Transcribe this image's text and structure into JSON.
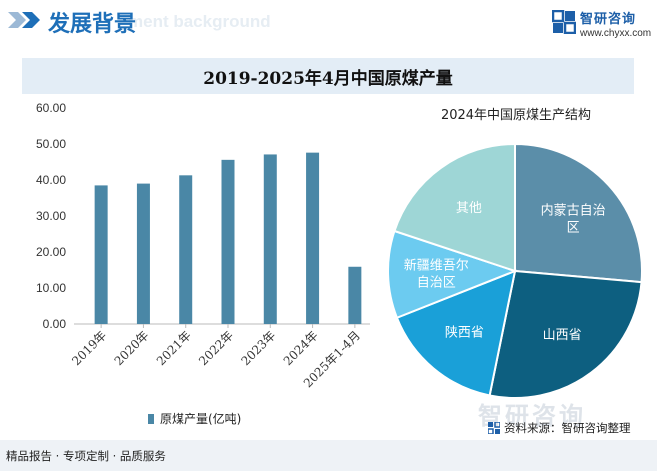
{
  "header": {
    "title": "发展背景",
    "bg_text": "ment background",
    "brand_name": "智研咨询",
    "brand_url": "www.chyxx.com"
  },
  "chart_title": "2019-2025年4月中国原煤产量",
  "pie_title": "2024年中国原煤生产结构",
  "legend_label": "原煤产量(亿吨)",
  "footer": {
    "left": "精品报告 · 专项定制 · 品质服务",
    "source": "资料来源：智研咨询整理",
    "watermark_logo": "智研咨询"
  },
  "colors": {
    "bar": "#4a87a6",
    "accent": "#1e6fb8",
    "pie": [
      "#5b8ea9",
      "#0d5f80",
      "#1aa0d8",
      "#6ccbf0",
      "#9ed6d6"
    ]
  },
  "chart_data": [
    {
      "type": "bar",
      "categories": [
        "2019年",
        "2020年",
        "2021年",
        "2022年",
        "2023年",
        "2024年",
        "2025年1-4月"
      ],
      "series": [
        {
          "name": "原煤产量(亿吨)",
          "values": [
            38.5,
            39.0,
            41.3,
            45.6,
            47.1,
            47.6,
            15.9
          ]
        }
      ],
      "yticks": [
        "0.00",
        "10.00",
        "20.00",
        "30.00",
        "40.00",
        "50.00",
        "60.00"
      ],
      "ylim": [
        0,
        60
      ],
      "legend": "bottom"
    },
    {
      "type": "pie",
      "title": "2024年中国原煤生产结构",
      "slices": [
        {
          "label": "内蒙古自治区",
          "lines": [
            "内蒙古自治",
            "区"
          ],
          "value": 26.4
        },
        {
          "label": "山西省",
          "lines": [
            "山西省"
          ],
          "value": 26.8
        },
        {
          "label": "陕西省",
          "lines": [
            "陕西省"
          ],
          "value": 15.8
        },
        {
          "label": "新疆维吾尔自治区",
          "lines": [
            "新疆维吾尔",
            "自治区"
          ],
          "value": 11.1
        },
        {
          "label": "其他",
          "lines": [
            "其他"
          ],
          "value": 19.9
        }
      ]
    }
  ]
}
